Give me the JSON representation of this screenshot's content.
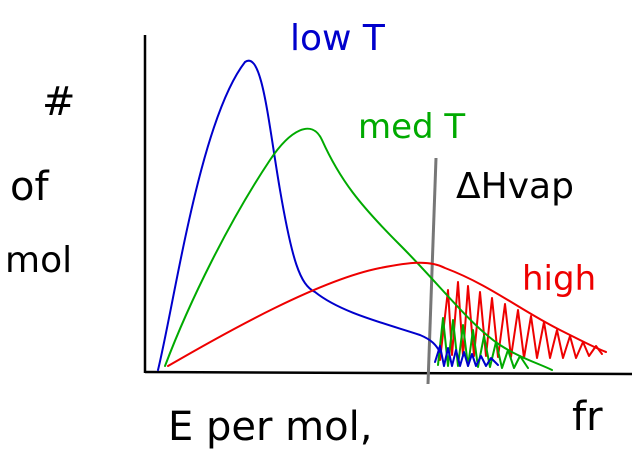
{
  "y_axis_label": {
    "line1": "#",
    "line2": "of",
    "line3": "mol"
  },
  "x_axis_label": "E per mol,",
  "cut_text": "fr",
  "curves": {
    "low": "low T",
    "med": "med T",
    "high": "high"
  },
  "threshold_label": "ΔHvap"
}
